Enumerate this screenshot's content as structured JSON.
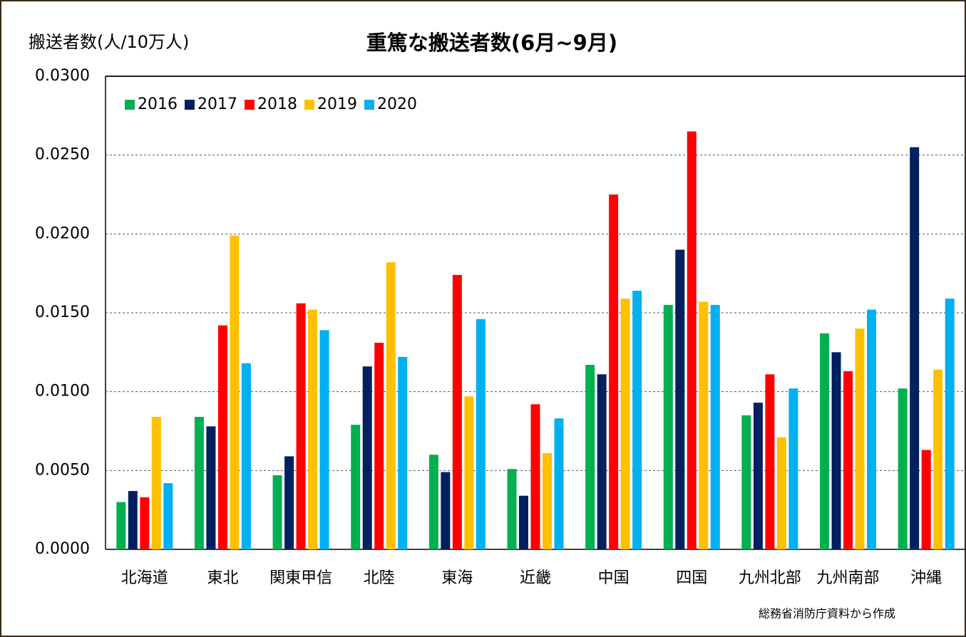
{
  "chart_data": {
    "type": "bar",
    "title": "重篤な搬送者数(6月~9月)",
    "y_axis_label": "搬送者数(人/10万人)",
    "source": "総務省消防庁資料から作成",
    "categories": [
      "北海道",
      "東北",
      "関東甲信",
      "北陸",
      "東海",
      "近畿",
      "中国",
      "四国",
      "九州北部",
      "九州南部",
      "沖縄"
    ],
    "series": [
      {
        "name": "2016",
        "color": "#00b050",
        "values": [
          0.003,
          0.0084,
          0.0047,
          0.0079,
          0.006,
          0.0051,
          0.0117,
          0.0155,
          0.0085,
          0.0137,
          0.0102
        ]
      },
      {
        "name": "2017",
        "color": "#002060",
        "values": [
          0.0037,
          0.0078,
          0.0059,
          0.0116,
          0.0049,
          0.0034,
          0.0111,
          0.019,
          0.0093,
          0.0125,
          0.0255
        ]
      },
      {
        "name": "2018",
        "color": "#ff0000",
        "values": [
          0.0033,
          0.0142,
          0.0156,
          0.0131,
          0.0174,
          0.0092,
          0.0225,
          0.0265,
          0.0111,
          0.0113,
          0.0063
        ]
      },
      {
        "name": "2019",
        "color": "#ffc000",
        "values": [
          0.0084,
          0.0199,
          0.0152,
          0.0182,
          0.0097,
          0.0061,
          0.0159,
          0.0157,
          0.0071,
          0.014,
          0.0114
        ]
      },
      {
        "name": "2020",
        "color": "#00b0f0",
        "values": [
          0.0042,
          0.0118,
          0.0139,
          0.0122,
          0.0146,
          0.0083,
          0.0164,
          0.0155,
          0.0102,
          0.0152,
          0.0159
        ]
      }
    ],
    "ylim": [
      0,
      0.03
    ],
    "yticks": [
      {
        "value": 0,
        "label": "0.0000"
      },
      {
        "value": 0.005,
        "label": "0.0050"
      },
      {
        "value": 0.01,
        "label": "0.0100"
      },
      {
        "value": 0.015,
        "label": "0.0150"
      },
      {
        "value": 0.02,
        "label": "0.0200"
      },
      {
        "value": 0.025,
        "label": "0.0250"
      },
      {
        "value": 0.03,
        "label": "0.0300"
      }
    ],
    "grid": true,
    "legend": "upper-left"
  }
}
